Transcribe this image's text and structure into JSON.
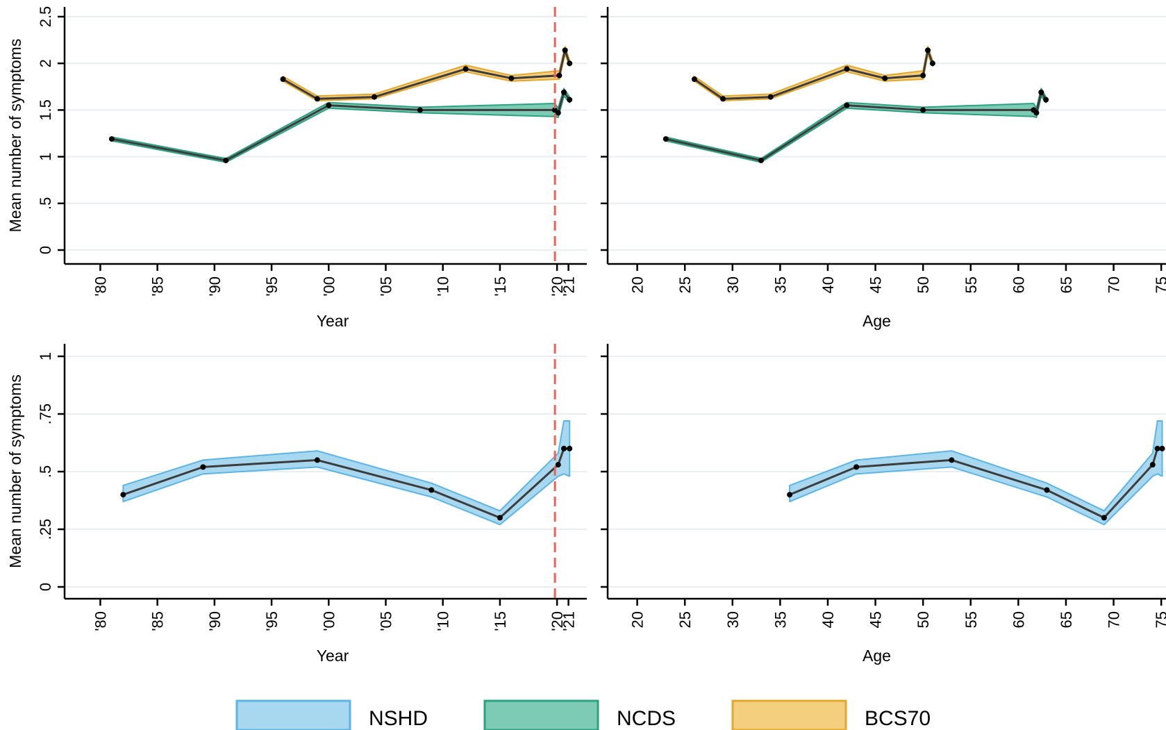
{
  "colors": {
    "NSHD": {
      "fill": "#a8d8f0",
      "stroke": "#5ab4e5"
    },
    "NCDS": {
      "fill": "#7dcab5",
      "stroke": "#2aa17f"
    },
    "BCS70": {
      "fill": "#f3cf7e",
      "stroke": "#e5a72a"
    },
    "line": "#3c3c3c",
    "marker": "#000000",
    "grid": "#e6eef0",
    "covid_line": "#ee6055"
  },
  "legend": {
    "position": "bottom",
    "items": [
      {
        "label": "NSHD",
        "key": "NSHD"
      },
      {
        "label": "NCDS",
        "key": "NCDS"
      },
      {
        "label": "BCS70",
        "key": "BCS70"
      }
    ]
  },
  "chart_data": [
    {
      "type": "area",
      "panel": "top-left",
      "xlabel": "Year",
      "ylabel": "Mean number of symptoms",
      "xlim": [
        1979,
        2022
      ],
      "ylim": [
        0,
        2.5
      ],
      "xticks": [
        {
          "v": 1980,
          "label": "'80"
        },
        {
          "v": 1985,
          "label": "'85"
        },
        {
          "v": 1990,
          "label": "'90"
        },
        {
          "v": 1995,
          "label": "'95"
        },
        {
          "v": 2000,
          "label": "'00"
        },
        {
          "v": 2005,
          "label": "'05"
        },
        {
          "v": 2010,
          "label": "'10"
        },
        {
          "v": 2015,
          "label": "'15"
        },
        {
          "v": 2020,
          "label": "'20"
        },
        {
          "v": 2021,
          "label": "'21"
        }
      ],
      "yticks": [
        {
          "v": 0,
          "label": "0"
        },
        {
          "v": 0.5,
          "label": ".5"
        },
        {
          "v": 1,
          "label": "1"
        },
        {
          "v": 1.5,
          "label": "1.5"
        },
        {
          "v": 2,
          "label": "2"
        },
        {
          "v": 2.5,
          "label": "2.5"
        }
      ],
      "grid": true,
      "vline": 2020,
      "series": [
        {
          "key": "NCDS",
          "x": [
            1981,
            1991,
            2000,
            2008,
            2019.8,
            2020.1,
            2020.6,
            2021.1
          ],
          "y": [
            1.19,
            0.96,
            1.55,
            1.5,
            1.5,
            1.47,
            1.69,
            1.61
          ],
          "lo": [
            1.17,
            0.94,
            1.52,
            1.47,
            1.43,
            1.42,
            1.65,
            1.58
          ],
          "hi": [
            1.21,
            0.98,
            1.58,
            1.53,
            1.57,
            1.52,
            1.73,
            1.64
          ]
        },
        {
          "key": "BCS70",
          "x": [
            1996,
            1999,
            2004,
            2012,
            2016,
            2020.2,
            2020.7,
            2021.1
          ],
          "y": [
            1.83,
            1.62,
            1.64,
            1.94,
            1.84,
            1.87,
            2.14,
            2.0
          ],
          "lo": [
            1.81,
            1.6,
            1.62,
            1.91,
            1.81,
            1.83,
            2.1,
            1.97
          ],
          "hi": [
            1.86,
            1.65,
            1.67,
            1.98,
            1.87,
            1.92,
            2.18,
            2.03
          ]
        }
      ]
    },
    {
      "type": "area",
      "panel": "top-right",
      "xlabel": "Age",
      "ylabel": "",
      "xlim": [
        18.5,
        75.5
      ],
      "ylim": [
        0,
        2.5
      ],
      "xticks": [
        {
          "v": 20,
          "label": "20"
        },
        {
          "v": 25,
          "label": "25"
        },
        {
          "v": 30,
          "label": "30"
        },
        {
          "v": 35,
          "label": "35"
        },
        {
          "v": 40,
          "label": "40"
        },
        {
          "v": 45,
          "label": "45"
        },
        {
          "v": 50,
          "label": "50"
        },
        {
          "v": 55,
          "label": "55"
        },
        {
          "v": 60,
          "label": "60"
        },
        {
          "v": 65,
          "label": "65"
        },
        {
          "v": 70,
          "label": "70"
        },
        {
          "v": 75,
          "label": "75"
        }
      ],
      "yticks": [
        {
          "v": 0
        },
        {
          "v": 0.5
        },
        {
          "v": 1
        },
        {
          "v": 1.5
        },
        {
          "v": 2
        },
        {
          "v": 2.5
        }
      ],
      "grid": true,
      "series": [
        {
          "key": "NCDS",
          "x": [
            23,
            33,
            42,
            50,
            61.6,
            61.9,
            62.4,
            62.9
          ],
          "y": [
            1.19,
            0.96,
            1.55,
            1.5,
            1.5,
            1.47,
            1.69,
            1.61
          ],
          "lo": [
            1.17,
            0.94,
            1.52,
            1.47,
            1.43,
            1.42,
            1.65,
            1.58
          ],
          "hi": [
            1.21,
            0.98,
            1.58,
            1.53,
            1.57,
            1.52,
            1.73,
            1.64
          ]
        },
        {
          "key": "BCS70",
          "x": [
            26,
            29,
            34,
            42,
            46,
            50,
            50.5,
            51
          ],
          "y": [
            1.83,
            1.62,
            1.64,
            1.94,
            1.84,
            1.87,
            2.14,
            2.0
          ],
          "lo": [
            1.81,
            1.6,
            1.62,
            1.91,
            1.81,
            1.83,
            2.1,
            1.97
          ],
          "hi": [
            1.86,
            1.65,
            1.67,
            1.98,
            1.87,
            1.92,
            2.18,
            2.03
          ]
        }
      ]
    },
    {
      "type": "area",
      "panel": "bottom-left",
      "xlabel": "Year",
      "ylabel": "Mean number of symptoms",
      "xlim": [
        1979,
        2022
      ],
      "ylim": [
        0,
        1
      ],
      "xticks": [
        {
          "v": 1980,
          "label": "'80"
        },
        {
          "v": 1985,
          "label": "'85"
        },
        {
          "v": 1990,
          "label": "'90"
        },
        {
          "v": 1995,
          "label": "'95"
        },
        {
          "v": 2000,
          "label": "'00"
        },
        {
          "v": 2005,
          "label": "'05"
        },
        {
          "v": 2010,
          "label": "'10"
        },
        {
          "v": 2015,
          "label": "'15"
        },
        {
          "v": 2020,
          "label": "'20"
        },
        {
          "v": 2021,
          "label": "'21"
        }
      ],
      "yticks": [
        {
          "v": 0,
          "label": "0"
        },
        {
          "v": 0.25,
          "label": ".25"
        },
        {
          "v": 0.5,
          "label": ".5"
        },
        {
          "v": 0.75,
          "label": ".75"
        },
        {
          "v": 1,
          "label": "1"
        }
      ],
      "grid": true,
      "vline": 2020,
      "series": [
        {
          "key": "NSHD",
          "x": [
            1982,
            1989,
            1999,
            2009,
            2015,
            2020.1,
            2020.6,
            2021.1
          ],
          "y": [
            0.4,
            0.52,
            0.55,
            0.42,
            0.3,
            0.53,
            0.6,
            0.6
          ],
          "lo": [
            0.37,
            0.49,
            0.52,
            0.39,
            0.27,
            0.48,
            0.49,
            0.48
          ],
          "hi": [
            0.44,
            0.55,
            0.59,
            0.45,
            0.33,
            0.58,
            0.72,
            0.72
          ]
        }
      ]
    },
    {
      "type": "area",
      "panel": "bottom-right",
      "xlabel": "Age",
      "ylabel": "",
      "xlim": [
        18.5,
        75.5
      ],
      "ylim": [
        0,
        1
      ],
      "xticks": [
        {
          "v": 20,
          "label": "20"
        },
        {
          "v": 25,
          "label": "25"
        },
        {
          "v": 30,
          "label": "30"
        },
        {
          "v": 35,
          "label": "35"
        },
        {
          "v": 40,
          "label": "40"
        },
        {
          "v": 45,
          "label": "45"
        },
        {
          "v": 50,
          "label": "50"
        },
        {
          "v": 55,
          "label": "55"
        },
        {
          "v": 60,
          "label": "60"
        },
        {
          "v": 65,
          "label": "65"
        },
        {
          "v": 70,
          "label": "70"
        },
        {
          "v": 75,
          "label": "75"
        }
      ],
      "yticks": [
        {
          "v": 0
        },
        {
          "v": 0.25
        },
        {
          "v": 0.5
        },
        {
          "v": 0.75
        },
        {
          "v": 1
        }
      ],
      "grid": true,
      "series": [
        {
          "key": "NSHD",
          "x": [
            36,
            43,
            53,
            63,
            69,
            74.1,
            74.6,
            75.1
          ],
          "y": [
            0.4,
            0.52,
            0.55,
            0.42,
            0.3,
            0.53,
            0.6,
            0.6
          ],
          "lo": [
            0.37,
            0.49,
            0.52,
            0.39,
            0.27,
            0.48,
            0.49,
            0.48
          ],
          "hi": [
            0.44,
            0.55,
            0.59,
            0.45,
            0.33,
            0.58,
            0.72,
            0.72
          ]
        }
      ]
    }
  ]
}
